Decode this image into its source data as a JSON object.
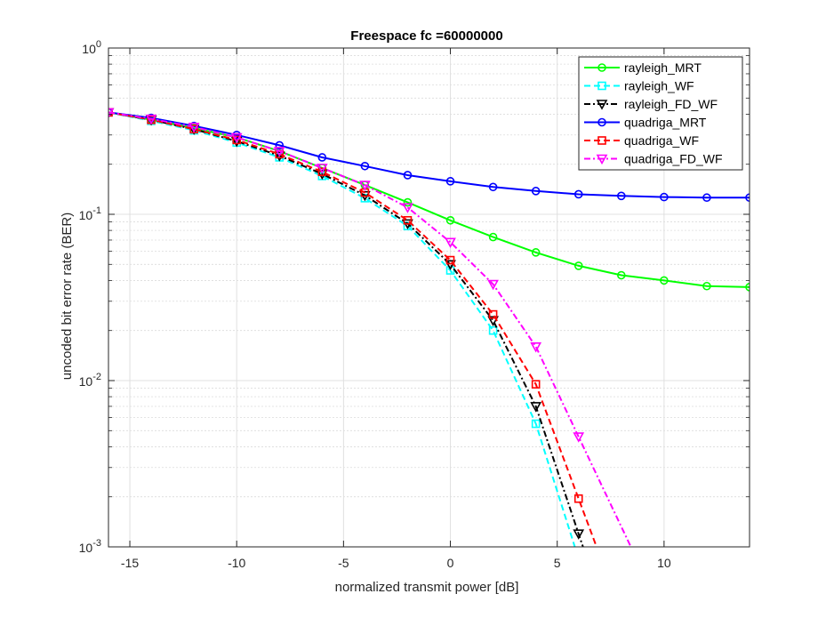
{
  "chart_data": {
    "type": "line",
    "title": "Freespace fc =60000000",
    "xlabel": "normalized transmit power [dB]",
    "ylabel": "uncoded bit error rate (BER)",
    "xlim": [
      -16,
      14
    ],
    "ylim": [
      0.001,
      1
    ],
    "yscale": "log",
    "grid": true,
    "legend_position": "top-right",
    "xticks": [
      -15,
      -10,
      -5,
      0,
      5,
      10
    ],
    "xtick_labels": [
      "-15",
      "-10",
      "-5",
      "0",
      "5",
      "10"
    ],
    "yticks": [
      0.001,
      0.01,
      0.1,
      1
    ],
    "ytick_labels": [
      {
        "base": "10",
        "exp": "-3"
      },
      {
        "base": "10",
        "exp": "-2"
      },
      {
        "base": "10",
        "exp": "-1"
      },
      {
        "base": "10",
        "exp": "0"
      }
    ],
    "x": [
      -16,
      -14,
      -12,
      -10,
      -8,
      -6,
      -4,
      -2,
      0,
      2,
      4,
      6,
      8,
      10,
      12,
      14
    ],
    "series": [
      {
        "name": "rayleigh_MRT",
        "color": "#00ff00",
        "dash": "solid",
        "marker": "circle",
        "values": [
          0.41,
          0.37,
          0.33,
          0.29,
          0.24,
          0.19,
          0.15,
          0.118,
          0.092,
          0.073,
          0.059,
          0.049,
          0.043,
          0.04,
          0.037,
          0.0365
        ]
      },
      {
        "name": "rayleigh_WF",
        "color": "#00ffff",
        "dash": "dashed",
        "marker": "square",
        "values": [
          0.41,
          0.365,
          0.32,
          0.27,
          0.22,
          0.17,
          0.125,
          0.085,
          0.046,
          0.02,
          0.0055,
          0.00085,
          null,
          null,
          null,
          null
        ]
      },
      {
        "name": "rayleigh_FD_WF",
        "color": "#000000",
        "dash": "dashdot",
        "marker": "triangle-down",
        "values": [
          0.41,
          0.37,
          0.325,
          0.275,
          0.225,
          0.175,
          0.13,
          0.088,
          0.05,
          0.023,
          0.007,
          0.0012,
          null,
          null,
          null,
          null
        ]
      },
      {
        "name": "quadriga_MRT",
        "color": "#0000ff",
        "dash": "solid",
        "marker": "circle",
        "values": [
          0.41,
          0.38,
          0.34,
          0.3,
          0.26,
          0.22,
          0.195,
          0.172,
          0.158,
          0.146,
          0.138,
          0.132,
          0.129,
          0.127,
          0.126,
          0.126
        ]
      },
      {
        "name": "quadriga_WF",
        "color": "#ff0000",
        "dash": "dashed",
        "marker": "square",
        "values": [
          0.41,
          0.37,
          0.325,
          0.28,
          0.23,
          0.18,
          0.135,
          0.092,
          0.053,
          0.025,
          0.0095,
          0.00195,
          null,
          null,
          null,
          null
        ]
      },
      {
        "name": "quadriga_FD_WF",
        "color": "#ff00ff",
        "dash": "dashdot",
        "marker": "triangle-down",
        "values": [
          0.41,
          0.375,
          0.335,
          0.29,
          0.24,
          0.19,
          0.15,
          0.11,
          0.068,
          0.038,
          0.016,
          0.0046,
          null,
          null,
          null,
          null
        ]
      }
    ]
  }
}
